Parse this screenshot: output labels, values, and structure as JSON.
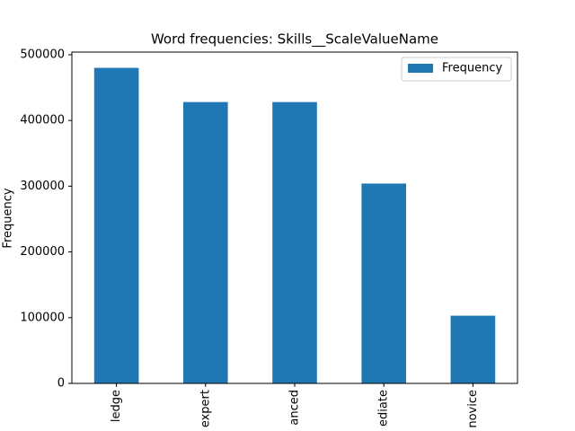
{
  "chart_data": {
    "type": "bar",
    "title": "Word frequencies: Skills__ScaleValueName",
    "ylabel": "Frequency",
    "categories": [
      "ledge",
      "expert",
      "anced",
      "ediate",
      "novice"
    ],
    "series": [
      {
        "name": "Frequency",
        "color": "#1f77b4",
        "values": [
          480000,
          428000,
          428000,
          304000,
          103000
        ]
      }
    ],
    "ylim": [
      0,
      504000
    ],
    "yticks": [
      0,
      100000,
      200000,
      300000,
      400000,
      500000
    ],
    "legend": "upper right"
  }
}
